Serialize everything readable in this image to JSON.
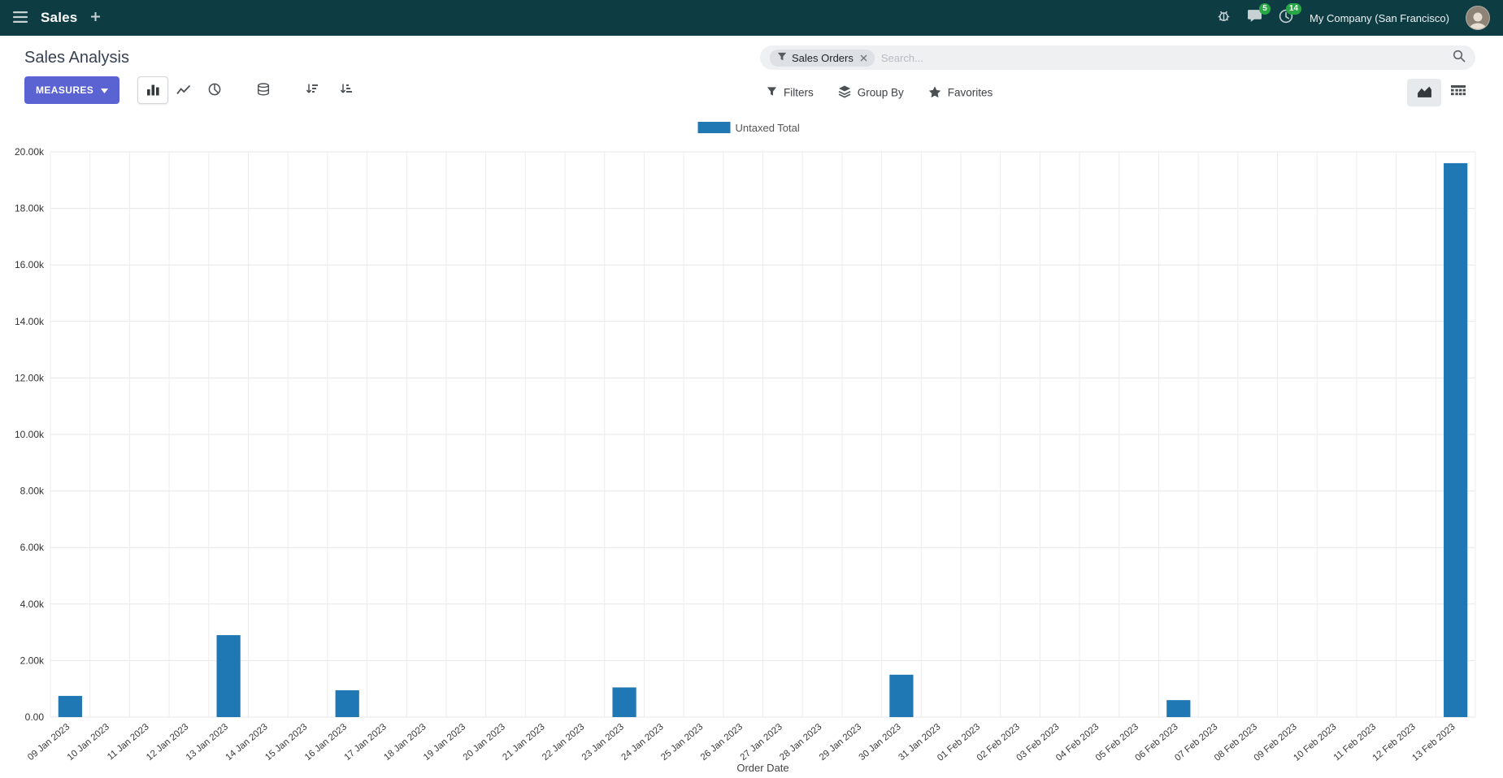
{
  "header": {
    "app_name": "Sales",
    "messages_badge": "5",
    "activities_badge": "14",
    "company": "My Company (San Francisco)"
  },
  "control_panel": {
    "title": "Sales Analysis",
    "measures_label": "MEASURES",
    "filters_label": "Filters",
    "group_by_label": "Group By",
    "favorites_label": "Favorites"
  },
  "search": {
    "facet": "Sales Orders",
    "placeholder": "Search..."
  },
  "colors": {
    "header_bg": "#0d3c43",
    "primary_button": "#5b63d3",
    "bar": "#1f77b4",
    "badge": "#28a745"
  },
  "icons": {
    "menu": "hamburger",
    "new_tab": "plus",
    "debug": "bug",
    "messages": "chat-bubble",
    "activities": "clock",
    "facet_filter": "funnel",
    "search": "magnifier",
    "measures_caret": "caret-down",
    "chart_bar": "bar-chart",
    "chart_line": "line-chart",
    "chart_pie": "pie-chart",
    "stacked": "database-stack",
    "sort_desc": "sort-amount-desc",
    "sort_asc": "sort-amount-asc",
    "filters": "funnel",
    "group_by": "layers",
    "favorites": "star",
    "view_graph": "area-chart",
    "view_pivot": "pivot-grid"
  },
  "chart_data": {
    "type": "bar",
    "title": "",
    "xlabel": "Order Date",
    "ylabel": "",
    "ylim": [
      0,
      20000
    ],
    "ytick_step": 2000,
    "legend_position": "top",
    "bar_color": "#1f77b4",
    "categories": [
      "09 Jan 2023",
      "10 Jan 2023",
      "11 Jan 2023",
      "12 Jan 2023",
      "13 Jan 2023",
      "14 Jan 2023",
      "15 Jan 2023",
      "16 Jan 2023",
      "17 Jan 2023",
      "18 Jan 2023",
      "19 Jan 2023",
      "20 Jan 2023",
      "21 Jan 2023",
      "22 Jan 2023",
      "23 Jan 2023",
      "24 Jan 2023",
      "25 Jan 2023",
      "26 Jan 2023",
      "27 Jan 2023",
      "28 Jan 2023",
      "29 Jan 2023",
      "30 Jan 2023",
      "31 Jan 2023",
      "01 Feb 2023",
      "02 Feb 2023",
      "03 Feb 2023",
      "04 Feb 2023",
      "05 Feb 2023",
      "06 Feb 2023",
      "07 Feb 2023",
      "08 Feb 2023",
      "09 Feb 2023",
      "10 Feb 2023",
      "11 Feb 2023",
      "12 Feb 2023",
      "13 Feb 2023"
    ],
    "series": [
      {
        "name": "Untaxed Total",
        "values": [
          750,
          0,
          0,
          0,
          2900,
          0,
          0,
          950,
          0,
          0,
          0,
          0,
          0,
          0,
          1050,
          0,
          0,
          0,
          0,
          0,
          0,
          1500,
          0,
          0,
          0,
          0,
          0,
          0,
          600,
          0,
          0,
          0,
          0,
          0,
          0,
          19600
        ]
      }
    ]
  }
}
